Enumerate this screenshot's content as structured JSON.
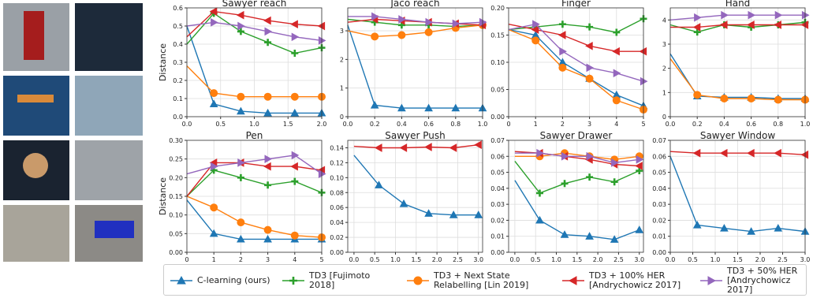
{
  "legend": [
    {
      "name": "C-learning (ours)",
      "color": "#1f77b4",
      "marker": "triangle-up"
    },
    {
      "name": "TD3 [Fujimoto 2018]",
      "color": "#2ca02c",
      "marker": "plus"
    },
    {
      "name": "TD3 + Next State Relabelling [Lin 2019]",
      "color": "#ff7f0e",
      "marker": "circle"
    },
    {
      "name": "TD3 + 100% HER [Andrychowicz 2017]",
      "color": "#d62728",
      "marker": "triangle-left"
    },
    {
      "name": "TD3 + 50% HER [Andrychowicz 2017]",
      "color": "#9467bd",
      "marker": "triangle-right"
    }
  ],
  "chart_data": [
    {
      "type": "line",
      "title": "Sawyer reach",
      "y_label": "Distance",
      "grid": true,
      "x": [
        0,
        0.4,
        0.8,
        1.2,
        1.6,
        2.0
      ],
      "xlim": [
        0,
        2.0
      ],
      "xticks": [
        {
          "value": 0,
          "label": "0.0"
        },
        0.5,
        {
          "value": 1,
          "label": "1.0"
        },
        1.5,
        {
          "value": 2,
          "label": "2.0"
        }
      ],
      "ylim": [
        0,
        0.6
      ],
      "yticks": [
        {
          "value": 0,
          "label": "0.0"
        },
        0.1,
        0.2,
        0.3,
        0.4,
        0.5,
        0.6
      ],
      "series": [
        {
          "color": "#1f77b4",
          "marker": "triangle-up",
          "values": [
            0.5,
            0.07,
            0.03,
            0.02,
            0.02,
            0.02
          ]
        },
        {
          "color": "#2ca02c",
          "marker": "plus",
          "values": [
            0.4,
            0.57,
            0.47,
            0.41,
            0.35,
            0.38
          ]
        },
        {
          "color": "#ff7f0e",
          "marker": "circle",
          "values": [
            0.28,
            0.13,
            0.11,
            0.11,
            0.11,
            0.11
          ]
        },
        {
          "color": "#d62728",
          "marker": "triangle-left",
          "values": [
            0.44,
            0.58,
            0.56,
            0.53,
            0.51,
            0.5
          ]
        },
        {
          "color": "#9467bd",
          "marker": "triangle-right",
          "values": [
            0.5,
            0.52,
            0.5,
            0.47,
            0.44,
            0.42
          ]
        }
      ]
    },
    {
      "type": "line",
      "title": "Jaco reach",
      "grid": true,
      "x": [
        0,
        0.2,
        0.4,
        0.6,
        0.8,
        1.0
      ],
      "xlim": [
        0,
        1.0
      ],
      "xticks": [
        {
          "value": 0,
          "label": "0.0"
        },
        0.2,
        0.4,
        0.6,
        0.8,
        {
          "value": 1,
          "label": "1.0"
        }
      ],
      "ylim": [
        0,
        3.8
      ],
      "yticks": [
        0,
        1,
        2,
        3
      ],
      "series": [
        {
          "color": "#1f77b4",
          "marker": "triangle-up",
          "values": [
            3.2,
            0.4,
            0.3,
            0.3,
            0.3,
            0.3
          ]
        },
        {
          "color": "#2ca02c",
          "marker": "plus",
          "values": [
            3.4,
            3.3,
            3.2,
            3.2,
            3.15,
            3.2
          ]
        },
        {
          "color": "#ff7f0e",
          "marker": "circle",
          "values": [
            3.0,
            2.8,
            2.85,
            2.95,
            3.1,
            3.2
          ]
        },
        {
          "color": "#d62728",
          "marker": "triangle-left",
          "values": [
            3.3,
            3.4,
            3.35,
            3.3,
            3.25,
            3.2
          ]
        },
        {
          "color": "#9467bd",
          "marker": "triangle-right",
          "values": [
            3.5,
            3.5,
            3.4,
            3.3,
            3.25,
            3.3
          ]
        }
      ]
    },
    {
      "type": "line",
      "title": "Finger",
      "grid": true,
      "x": [
        0,
        1,
        2,
        3,
        4,
        5
      ],
      "xlim": [
        0,
        5
      ],
      "xticks": [
        0,
        1,
        2,
        3,
        4,
        5
      ],
      "ylim": [
        0,
        0.2
      ],
      "yticks": [
        {
          "value": 0,
          "label": "0.00"
        },
        0.05,
        {
          "value": 0.1,
          "label": "0.10"
        },
        0.15,
        {
          "value": 0.2,
          "label": "0.20"
        }
      ],
      "series": [
        {
          "color": "#1f77b4",
          "marker": "triangle-up",
          "values": [
            0.16,
            0.15,
            0.1,
            0.07,
            0.04,
            0.02
          ]
        },
        {
          "color": "#2ca02c",
          "marker": "plus",
          "values": [
            0.16,
            0.165,
            0.17,
            0.165,
            0.155,
            0.18
          ]
        },
        {
          "color": "#ff7f0e",
          "marker": "circle",
          "values": [
            0.16,
            0.14,
            0.09,
            0.07,
            0.03,
            0.013
          ]
        },
        {
          "color": "#d62728",
          "marker": "triangle-left",
          "values": [
            0.17,
            0.16,
            0.15,
            0.13,
            0.12,
            0.12
          ]
        },
        {
          "color": "#9467bd",
          "marker": "triangle-right",
          "values": [
            0.16,
            0.17,
            0.12,
            0.09,
            0.08,
            0.065
          ]
        }
      ]
    },
    {
      "type": "line",
      "title": "Hand",
      "grid": true,
      "x": [
        0,
        0.2,
        0.4,
        0.6,
        0.8,
        1.0
      ],
      "xlim": [
        0,
        1.0
      ],
      "xticks": [
        {
          "value": 0,
          "label": "0.0"
        },
        0.2,
        0.4,
        0.6,
        0.8,
        {
          "value": 1,
          "label": "1.0"
        }
      ],
      "ylim": [
        0,
        4.5
      ],
      "yticks": [
        0,
        1,
        2,
        3,
        4
      ],
      "series": [
        {
          "color": "#1f77b4",
          "marker": "triangle-up",
          "values": [
            2.6,
            0.85,
            0.8,
            0.8,
            0.75,
            0.75
          ]
        },
        {
          "color": "#2ca02c",
          "marker": "plus",
          "values": [
            3.8,
            3.5,
            3.8,
            3.7,
            3.8,
            3.9
          ]
        },
        {
          "color": "#ff7f0e",
          "marker": "circle",
          "values": [
            2.4,
            0.9,
            0.75,
            0.75,
            0.7,
            0.7
          ]
        },
        {
          "color": "#d62728",
          "marker": "triangle-left",
          "values": [
            3.7,
            3.7,
            3.8,
            3.8,
            3.8,
            3.8
          ]
        },
        {
          "color": "#9467bd",
          "marker": "triangle-right",
          "values": [
            4.0,
            4.1,
            4.2,
            4.2,
            4.2,
            4.2
          ]
        }
      ]
    },
    {
      "type": "line",
      "title": "Pen",
      "y_label": "Distance",
      "x_label": "steps",
      "x_offset": "1e5",
      "grid": true,
      "x": [
        0,
        1,
        2,
        3,
        4,
        5
      ],
      "xlim": [
        0,
        5
      ],
      "xticks": [
        0,
        1,
        2,
        3,
        4,
        5
      ],
      "ylim": [
        0,
        0.3
      ],
      "yticks": [
        {
          "value": 0,
          "label": "0.00"
        },
        0.05,
        {
          "value": 0.1,
          "label": "0.10"
        },
        0.15,
        {
          "value": 0.2,
          "label": "0.20"
        },
        0.25,
        {
          "value": 0.3,
          "label": "0.30"
        }
      ],
      "series": [
        {
          "color": "#1f77b4",
          "marker": "triangle-up",
          "values": [
            0.14,
            0.05,
            0.035,
            0.035,
            0.035,
            0.035
          ]
        },
        {
          "color": "#2ca02c",
          "marker": "plus",
          "values": [
            0.15,
            0.22,
            0.2,
            0.18,
            0.19,
            0.16
          ]
        },
        {
          "color": "#ff7f0e",
          "marker": "circle",
          "values": [
            0.15,
            0.12,
            0.08,
            0.06,
            0.045,
            0.04
          ]
        },
        {
          "color": "#d62728",
          "marker": "triangle-left",
          "values": [
            0.15,
            0.24,
            0.24,
            0.23,
            0.23,
            0.22
          ]
        },
        {
          "color": "#9467bd",
          "marker": "triangle-right",
          "values": [
            0.21,
            0.23,
            0.24,
            0.25,
            0.26,
            0.21
          ]
        }
      ]
    },
    {
      "type": "line",
      "title": "Sawyer Push",
      "x_label": "steps",
      "x_offset": "1e6",
      "grid": true,
      "x": [
        0,
        0.6,
        1.2,
        1.8,
        2.4,
        3.0
      ],
      "xlim": [
        -0.15,
        3.1
      ],
      "xticks": [
        {
          "value": 0,
          "label": "0.0"
        },
        0.5,
        {
          "value": 1,
          "label": "1.0"
        },
        1.5,
        {
          "value": 2,
          "label": "2.0"
        },
        2.5,
        {
          "value": 3,
          "label": "3.0"
        }
      ],
      "ylim": [
        0,
        0.15
      ],
      "yticks": [
        {
          "value": 0,
          "label": "0.00"
        },
        0.02,
        0.04,
        0.06,
        0.08,
        {
          "value": 0.1,
          "label": "0.10"
        },
        0.12,
        0.14
      ],
      "series": [
        {
          "color": "#1f77b4",
          "marker": "triangle-up",
          "values": [
            0.13,
            0.09,
            0.065,
            0.052,
            0.05,
            0.05
          ]
        },
        {
          "color": "#d62728",
          "marker": "triangle-left",
          "values": [
            0.142,
            0.14,
            0.14,
            0.141,
            0.14,
            0.144
          ]
        }
      ]
    },
    {
      "type": "line",
      "title": "Sawyer Drawer",
      "x_label": "steps",
      "x_offset": "1e6",
      "grid": true,
      "x": [
        0,
        0.6,
        1.2,
        1.8,
        2.4,
        3.0
      ],
      "xlim": [
        -0.15,
        3.1
      ],
      "xticks": [
        {
          "value": 0,
          "label": "0.0"
        },
        0.5,
        {
          "value": 1,
          "label": "1.0"
        },
        1.5,
        {
          "value": 2,
          "label": "2.0"
        },
        2.5,
        {
          "value": 3,
          "label": "3.0"
        }
      ],
      "ylim": [
        0,
        0.07
      ],
      "yticks": [
        {
          "value": 0,
          "label": "0.00"
        },
        0.01,
        0.02,
        0.03,
        0.04,
        0.05,
        0.06,
        0.07
      ],
      "series": [
        {
          "color": "#1f77b4",
          "marker": "triangle-up",
          "values": [
            0.045,
            0.02,
            0.011,
            0.01,
            0.008,
            0.014
          ]
        },
        {
          "color": "#2ca02c",
          "marker": "plus",
          "values": [
            0.057,
            0.037,
            0.043,
            0.047,
            0.044,
            0.051
          ]
        },
        {
          "color": "#ff7f0e",
          "marker": "circle",
          "values": [
            0.06,
            0.06,
            0.062,
            0.06,
            0.058,
            0.06
          ]
        },
        {
          "color": "#d62728",
          "marker": "triangle-left",
          "values": [
            0.063,
            0.062,
            0.06,
            0.058,
            0.055,
            0.054
          ]
        },
        {
          "color": "#9467bd",
          "marker": "triangle-right",
          "values": [
            0.062,
            0.062,
            0.06,
            0.06,
            0.056,
            0.058
          ]
        }
      ]
    },
    {
      "type": "line",
      "title": "Sawyer Window",
      "x_label": "steps",
      "x_offset": "1e6",
      "grid": true,
      "x": [
        0,
        0.6,
        1.2,
        1.8,
        2.4,
        3.0
      ],
      "xlim": [
        0,
        3.0
      ],
      "xticks": [
        {
          "value": 0,
          "label": "0.0"
        },
        0.5,
        {
          "value": 1,
          "label": "1.0"
        },
        1.5,
        {
          "value": 2,
          "label": "2.0"
        },
        2.5,
        {
          "value": 3,
          "label": "3.0"
        }
      ],
      "ylim": [
        0,
        0.07
      ],
      "yticks": [
        {
          "value": 0,
          "label": "0.00"
        },
        0.01,
        0.02,
        0.03,
        0.04,
        0.05,
        0.06,
        0.07
      ],
      "series": [
        {
          "color": "#1f77b4",
          "marker": "triangle-up",
          "values": [
            0.06,
            0.017,
            0.015,
            0.013,
            0.015,
            0.013
          ]
        },
        {
          "color": "#d62728",
          "marker": "triangle-left",
          "values": [
            0.063,
            0.062,
            0.062,
            0.062,
            0.062,
            0.061
          ]
        }
      ]
    }
  ]
}
